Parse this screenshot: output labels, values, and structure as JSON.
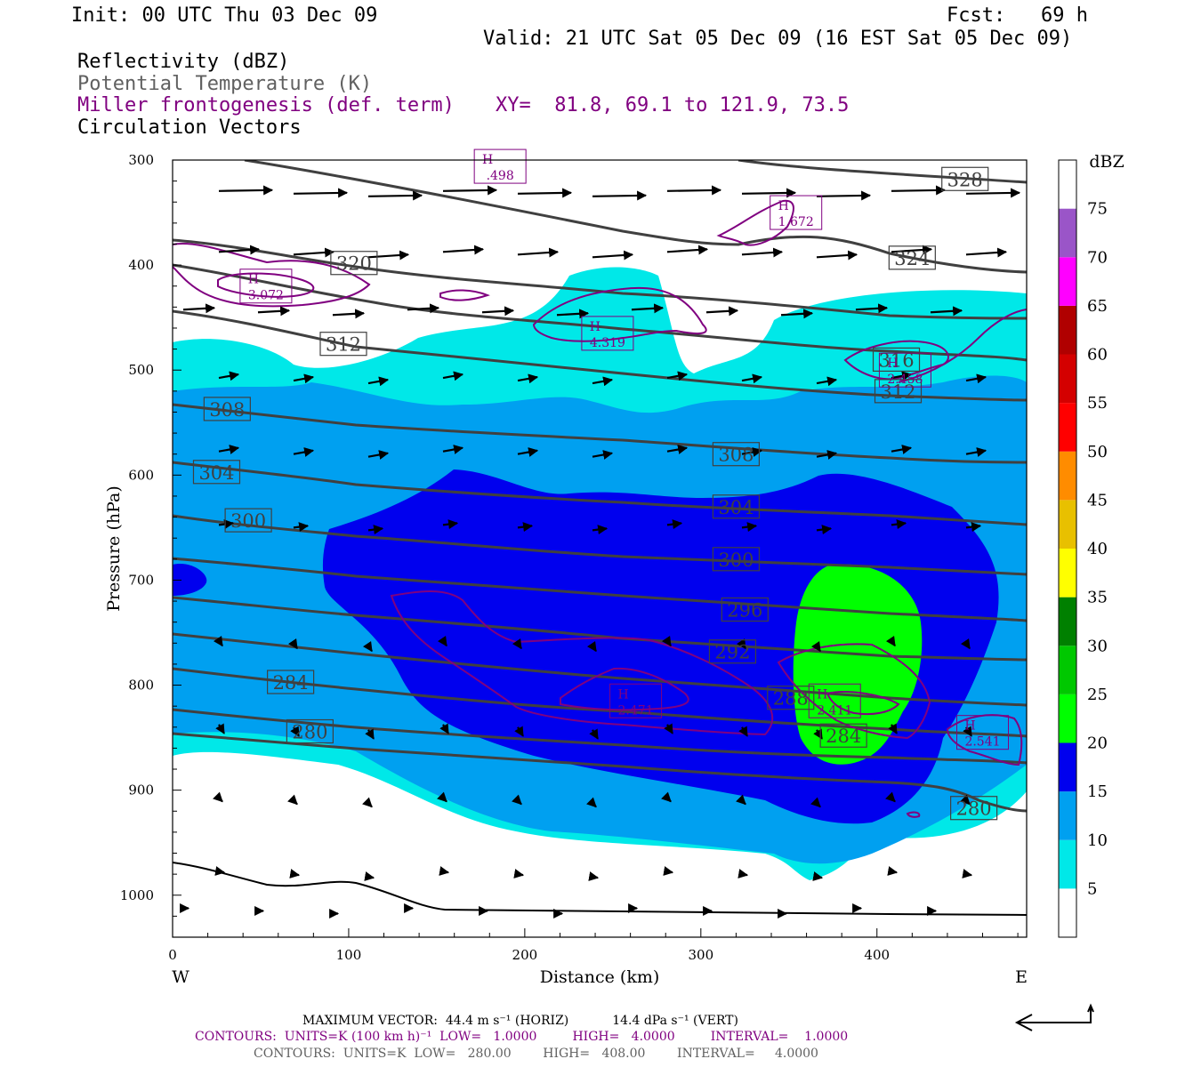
{
  "header": {
    "init": "Init: 00 UTC Thu 03 Dec 09",
    "fcst": "Fcst:   69 h",
    "valid": "Valid: 21 UTC Sat 05 Dec 09 (16 EST Sat 05 Dec 09)",
    "field1": "Reflectivity (dBZ)",
    "field2": "Potential Temperature (K)",
    "field3": "Miller frontogenesis (def. term)",
    "xy": "XY=  81.8, 69.1 to 121.9, 73.5",
    "field4": "Circulation Vectors"
  },
  "colors": {
    "theta": "#404040",
    "fronto": "#800080",
    "vector": "#000000",
    "dbz_scale": [
      "#ffffff",
      "#00e8e8",
      "#00a0f0",
      "#0000ee",
      "#00ff00",
      "#00c800",
      "#008000",
      "#ffff00",
      "#e8c000",
      "#ff8c00",
      "#ff0000",
      "#d40000",
      "#b00000",
      "#ff00ff",
      "#9a55c8",
      "#ffffff"
    ]
  },
  "chart_data": {
    "type": "contour",
    "xlabel": "Distance (km)",
    "ylabel": "Pressure (hPa)",
    "xlim": [
      0,
      485
    ],
    "ylim": [
      1040,
      300
    ],
    "x_ticks": [
      "0",
      "100",
      "200",
      "300",
      "400"
    ],
    "y_ticks": [
      "300",
      "400",
      "500",
      "600",
      "700",
      "800",
      "900",
      "1000"
    ],
    "x_end_labels": {
      "left": "W",
      "right": "E"
    },
    "colorbar": {
      "title": "dBZ",
      "levels": [
        5,
        10,
        15,
        20,
        25,
        30,
        35,
        40,
        45,
        50,
        55,
        60,
        65,
        70,
        75
      ]
    },
    "theta_labels": [
      {
        "text": "328",
        "x": 450,
        "p": 318
      },
      {
        "text": "324",
        "x": 420,
        "p": 393
      },
      {
        "text": "320",
        "x": 103,
        "p": 398
      },
      {
        "text": "316",
        "x": 411,
        "p": 490
      },
      {
        "text": "312",
        "x": 97,
        "p": 475
      },
      {
        "text": "312",
        "x": 412,
        "p": 520
      },
      {
        "text": "308",
        "x": 31,
        "p": 537
      },
      {
        "text": "308",
        "x": 320,
        "p": 580
      },
      {
        "text": "304",
        "x": 25,
        "p": 597
      },
      {
        "text": "304",
        "x": 320,
        "p": 630
      },
      {
        "text": "300",
        "x": 43,
        "p": 643
      },
      {
        "text": "300",
        "x": 320,
        "p": 680
      },
      {
        "text": "296",
        "x": 325,
        "p": 728
      },
      {
        "text": "292",
        "x": 318,
        "p": 768
      },
      {
        "text": "288",
        "x": 351,
        "p": 812
      },
      {
        "text": "284",
        "x": 67,
        "p": 797
      },
      {
        "text": "284",
        "x": 381,
        "p": 848
      },
      {
        "text": "280",
        "x": 78,
        "p": 844
      },
      {
        "text": "280",
        "x": 455,
        "p": 917
      }
    ],
    "fronto_maxima": [
      {
        "text": "H",
        "value": ".498",
        "x": 186,
        "p": 306
      },
      {
        "text": "H",
        "value": "1.672",
        "x": 354,
        "p": 350
      },
      {
        "text": "H",
        "value": "3.072",
        "x": 53,
        "p": 420
      },
      {
        "text": "H",
        "value": "4.319",
        "x": 247,
        "p": 465
      },
      {
        "text": "H",
        "value": "2.458",
        "x": 416,
        "p": 500
      },
      {
        "text": "H",
        "value": "2.471",
        "x": 263,
        "p": 815
      },
      {
        "text": "H",
        "value": "2.411",
        "x": 376,
        "p": 815
      },
      {
        "text": "H",
        "value": "2.541",
        "x": 460,
        "p": 845
      }
    ]
  },
  "footer": {
    "max_vector": "MAXIMUM VECTOR:  44.4 m s⁻¹ (HORIZ)           14.4 dPa s⁻¹ (VERT)",
    "contours1": "CONTOURS:  UNITS=K (100 km h)⁻¹  LOW=   1.0000         HIGH=   4.0000         INTERVAL=    1.0000",
    "contours2": "CONTOURS:  UNITS=K  LOW=   280.00        HIGH=   408.00        INTERVAL=     4.0000"
  }
}
